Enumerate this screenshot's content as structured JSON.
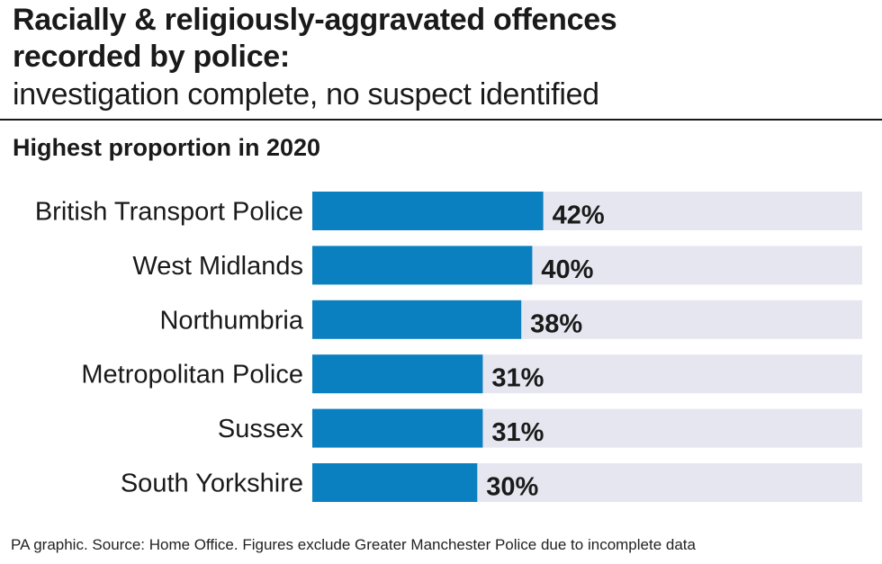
{
  "header": {
    "title_line1": "Racially & religiously-aggravated offences",
    "title_line2": "recorded by police:",
    "subtitle": "investigation complete, no suspect identified",
    "chart_heading": "Highest proportion in 2020"
  },
  "colors": {
    "bar": "#0a80c0",
    "track": "#e6e6f0",
    "text": "#1a1a1a"
  },
  "chart_data": {
    "type": "bar",
    "orientation": "horizontal",
    "title": "Highest proportion in 2020",
    "categories": [
      "British Transport Police",
      "West Midlands",
      "Northumbria",
      "Metropolitan Police",
      "Sussex",
      "South Yorkshire"
    ],
    "values": [
      42,
      40,
      38,
      31,
      31,
      30
    ],
    "value_labels": [
      "42%",
      "40%",
      "38%",
      "31%",
      "31%",
      "30%"
    ],
    "unit": "%",
    "xlim": [
      0,
      100
    ],
    "grid": false,
    "legend": "none"
  },
  "footer": {
    "source": "PA graphic. Source: Home Office. Figures exclude Greater Manchester Police due to incomplete data"
  }
}
